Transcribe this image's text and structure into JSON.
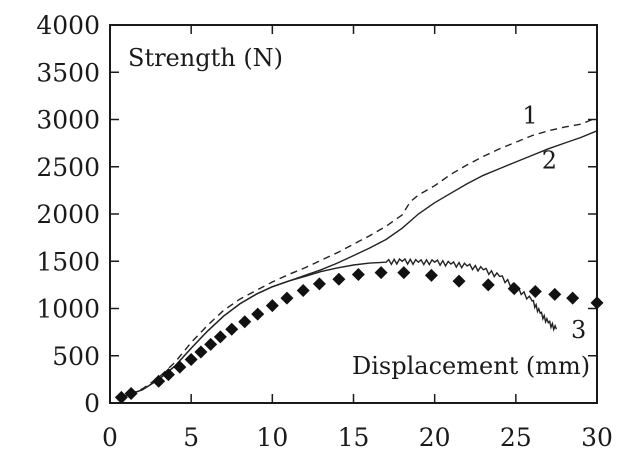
{
  "chart_data": {
    "type": "line",
    "title": "",
    "ylabel": "Strength (N)",
    "xlabel": "Displacement (mm)",
    "xlim": [
      0,
      30
    ],
    "ylim": [
      0,
      4000
    ],
    "x_ticks": [
      0,
      5,
      10,
      15,
      20,
      25,
      30
    ],
    "y_ticks": [
      0,
      500,
      1000,
      1500,
      2000,
      2500,
      3000,
      3500,
      4000
    ],
    "grid": false,
    "legend": "none",
    "series": [
      {
        "name": "1",
        "style": "dashed",
        "color": "#222222",
        "x": [
          0.5,
          1,
          2,
          3,
          4,
          5,
          6,
          7,
          8,
          9,
          10,
          11,
          12,
          13,
          14,
          15,
          16,
          17,
          18,
          18.5,
          19,
          20,
          21,
          22,
          23,
          24,
          25,
          26,
          27,
          28,
          29,
          30
        ],
        "y": [
          50,
          80,
          150,
          270,
          430,
          640,
          820,
          980,
          1100,
          1190,
          1280,
          1360,
          1430,
          1510,
          1590,
          1680,
          1770,
          1870,
          1990,
          2130,
          2200,
          2300,
          2420,
          2520,
          2610,
          2690,
          2760,
          2830,
          2880,
          2920,
          2950,
          3020
        ]
      },
      {
        "name": "2",
        "style": "solid",
        "color": "#222222",
        "x": [
          0.5,
          1,
          2,
          3,
          4,
          5,
          6,
          7,
          8,
          9,
          10,
          11,
          12,
          13,
          14,
          15,
          16,
          17,
          18,
          19,
          20,
          21,
          22,
          23,
          24,
          25,
          26,
          27,
          28,
          29,
          30
        ],
        "y": [
          50,
          80,
          140,
          250,
          390,
          580,
          760,
          920,
          1050,
          1150,
          1230,
          1290,
          1350,
          1410,
          1480,
          1560,
          1640,
          1730,
          1850,
          2000,
          2120,
          2220,
          2320,
          2410,
          2480,
          2550,
          2620,
          2690,
          2750,
          2810,
          2880
        ]
      },
      {
        "name": "3",
        "style": "solid-noisy",
        "color": "#222222",
        "x": [
          0.5,
          1,
          2,
          3,
          4,
          5,
          6,
          7,
          8,
          9,
          10,
          11,
          12,
          13,
          14,
          15,
          16,
          17,
          18,
          19,
          20,
          21,
          22,
          23,
          24,
          25,
          26,
          26.5,
          27,
          27.5
        ],
        "y": [
          50,
          80,
          140,
          250,
          390,
          580,
          760,
          920,
          1050,
          1150,
          1230,
          1290,
          1340,
          1390,
          1430,
          1460,
          1480,
          1490,
          1500,
          1490,
          1490,
          1470,
          1450,
          1410,
          1340,
          1220,
          1080,
          950,
          850,
          780
        ]
      },
      {
        "name": "",
        "style": "diamond-markers",
        "color": "#111111",
        "x": [
          0.7,
          1.3,
          3,
          3.6,
          4.3,
          5,
          5.6,
          6.2,
          6.8,
          7.5,
          8.3,
          9.1,
          10,
          10.9,
          11.9,
          12.9,
          14.1,
          15.3,
          16.7,
          18.1,
          19.8,
          21.5,
          23.3,
          24.9,
          26.2,
          27.4,
          28.5,
          30
        ],
        "y": [
          60,
          100,
          230,
          300,
          380,
          460,
          540,
          620,
          700,
          780,
          860,
          940,
          1030,
          1110,
          1190,
          1260,
          1310,
          1360,
          1380,
          1380,
          1350,
          1290,
          1250,
          1210,
          1180,
          1150,
          1110,
          1060
        ]
      }
    ],
    "curve_labels": [
      {
        "text": "1",
        "x": 25.4,
        "y": 2960
      },
      {
        "text": "2",
        "x": 26.6,
        "y": 2480
      },
      {
        "text": "3",
        "x": 28.4,
        "y": 690
      }
    ]
  }
}
